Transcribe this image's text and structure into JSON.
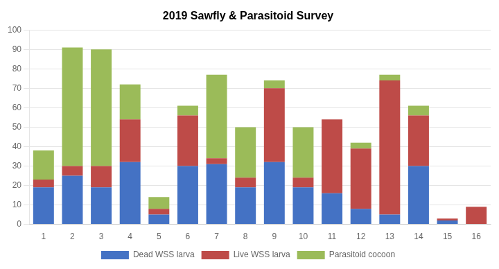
{
  "chart_data": {
    "type": "bar",
    "title": "2019 Sawfly & Parasitoid Survey",
    "categories": [
      "1",
      "2",
      "3",
      "4",
      "5",
      "6",
      "7",
      "8",
      "9",
      "10",
      "11",
      "12",
      "13",
      "14",
      "15",
      "16"
    ],
    "series": [
      {
        "name": "Dead WSS larva",
        "color": "#4472C4",
        "values": [
          19,
          25,
          19,
          32,
          5,
          30,
          31,
          19,
          32,
          19,
          16,
          8,
          5,
          30,
          2,
          0
        ]
      },
      {
        "name": "Live WSS larva",
        "color": "#BE4B48",
        "values": [
          4,
          5,
          11,
          22,
          3,
          26,
          3,
          5,
          38,
          5,
          38,
          31,
          69,
          26,
          1,
          9
        ]
      },
      {
        "name": "Parasitoid cocoon",
        "color": "#9BBB59",
        "values": [
          15,
          61,
          60,
          18,
          6,
          5,
          43,
          26,
          4,
          26,
          0,
          3,
          3,
          5,
          0,
          0
        ]
      }
    ],
    "ylim": [
      0,
      100
    ],
    "yticks": [
      0,
      10,
      20,
      30,
      40,
      50,
      60,
      70,
      80,
      90,
      100
    ],
    "grid": true,
    "stacked": true,
    "legend": "bottom"
  }
}
